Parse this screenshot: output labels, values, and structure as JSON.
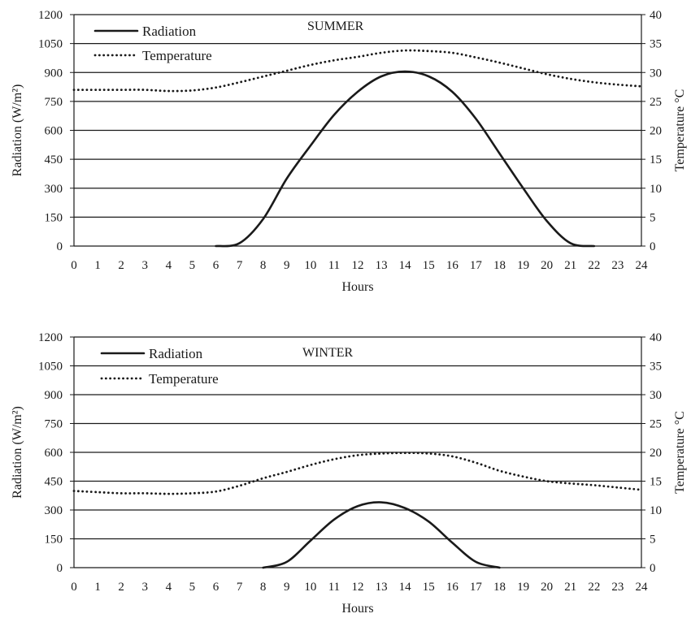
{
  "chart_data": [
    {
      "type": "line",
      "title": "SUMMER",
      "xlabel": "Hours",
      "ylabel": "Radiation (W/m²)",
      "y2label": "Temperature °C",
      "x_ticks": [
        0,
        1,
        2,
        3,
        4,
        5,
        6,
        7,
        8,
        9,
        10,
        11,
        12,
        13,
        14,
        15,
        16,
        17,
        18,
        19,
        20,
        21,
        22,
        23,
        24
      ],
      "xlim": [
        0,
        24
      ],
      "ylim": [
        0,
        1200
      ],
      "y_ticks": [
        0,
        150,
        300,
        450,
        600,
        750,
        900,
        1050,
        1200
      ],
      "y2lim": [
        0,
        40
      ],
      "y2_ticks": [
        0,
        5,
        10,
        15,
        20,
        25,
        30,
        35,
        40
      ],
      "grid": "horizontal",
      "legend_position": "top-left",
      "series": [
        {
          "name": "Radiation",
          "axis": "left",
          "style": "solid",
          "x": [
            6,
            7,
            8,
            9,
            10,
            11,
            12,
            13,
            14,
            15,
            16,
            17,
            18,
            19,
            20,
            21,
            22
          ],
          "values": [
            0,
            15,
            140,
            350,
            520,
            680,
            800,
            880,
            905,
            880,
            800,
            660,
            480,
            300,
            130,
            15,
            0
          ]
        },
        {
          "name": "Temperature",
          "axis": "right",
          "style": "dotted",
          "x": [
            0,
            1,
            2,
            3,
            4,
            5,
            6,
            7,
            8,
            9,
            10,
            11,
            12,
            13,
            14,
            15,
            16,
            17,
            18,
            19,
            20,
            21,
            22,
            23,
            24
          ],
          "values": [
            27,
            27,
            27,
            27,
            26.8,
            26.9,
            27.4,
            28.3,
            29.3,
            30.3,
            31.3,
            32.1,
            32.7,
            33.4,
            33.8,
            33.7,
            33.4,
            32.6,
            31.7,
            30.7,
            29.7,
            28.9,
            28.3,
            27.9,
            27.6
          ]
        }
      ]
    },
    {
      "type": "line",
      "title": "WINTER",
      "xlabel": "Hours",
      "ylabel": "Radiation (W/m²)",
      "y2label": "Temperature °C",
      "x_ticks": [
        0,
        1,
        2,
        3,
        4,
        5,
        6,
        7,
        8,
        9,
        10,
        11,
        12,
        13,
        14,
        15,
        16,
        17,
        18,
        19,
        20,
        21,
        22,
        23,
        24
      ],
      "xlim": [
        0,
        24
      ],
      "ylim": [
        0,
        1200
      ],
      "y_ticks": [
        0,
        150,
        300,
        450,
        600,
        750,
        900,
        1050,
        1200
      ],
      "y2lim": [
        0,
        40
      ],
      "y2_ticks": [
        0,
        5,
        10,
        15,
        20,
        25,
        30,
        35,
        40
      ],
      "grid": "horizontal",
      "legend_position": "top-left",
      "series": [
        {
          "name": "Radiation",
          "axis": "left",
          "style": "solid",
          "x": [
            8,
            9,
            10,
            11,
            12,
            13,
            14,
            15,
            16,
            17,
            18
          ],
          "values": [
            0,
            30,
            140,
            250,
            320,
            340,
            310,
            240,
            130,
            30,
            0
          ]
        },
        {
          "name": "Temperature",
          "axis": "right",
          "style": "dotted",
          "x": [
            0,
            1,
            2,
            3,
            4,
            5,
            6,
            7,
            8,
            9,
            10,
            11,
            12,
            13,
            14,
            15,
            16,
            17,
            18,
            19,
            20,
            21,
            22,
            23,
            24
          ],
          "values": [
            13.3,
            13.1,
            12.9,
            12.9,
            12.8,
            12.9,
            13.2,
            14.2,
            15.5,
            16.6,
            17.8,
            18.8,
            19.5,
            19.8,
            19.9,
            19.8,
            19.3,
            18.2,
            16.8,
            15.8,
            15.0,
            14.6,
            14.3,
            13.9,
            13.5
          ]
        }
      ]
    }
  ]
}
